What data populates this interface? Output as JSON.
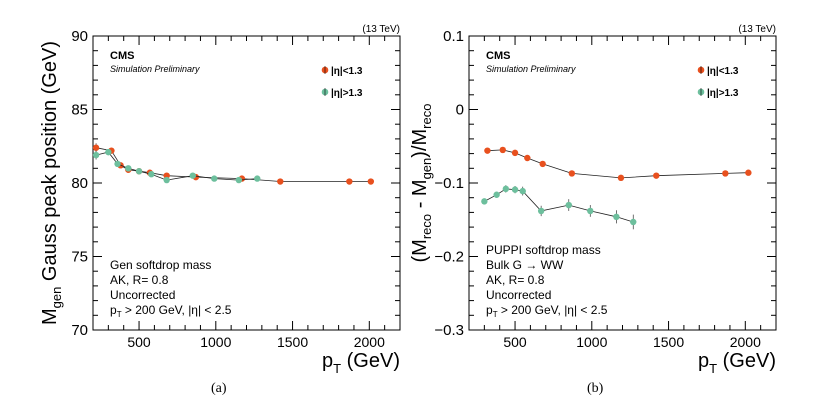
{
  "chart_data": [
    {
      "type": "line",
      "panel_label": "(a)",
      "energy_label": "(13 TeV)",
      "cms_label": "CMS",
      "sim_label": "Simulation Preliminary",
      "xlabel": "p_T (GeV)",
      "ylabel": "M_gen Gauss peak position (GeV)",
      "xlim": [
        200,
        2200
      ],
      "ylim": [
        70,
        90
      ],
      "xticks": [
        500,
        1000,
        1500,
        2000
      ],
      "yticks": [
        70,
        75,
        80,
        85,
        90
      ],
      "legend_position": "top-right",
      "annotations": [
        "Gen softdrop mass",
        "AK, R= 0.8",
        "Uncorrected",
        "p_T > 200 GeV, |η| < 2.5"
      ],
      "series": [
        {
          "name": "|η|<1.3",
          "color": "#e8501e",
          "x": [
            220,
            320,
            380,
            430,
            500,
            570,
            680,
            870,
            1170,
            1420,
            1870,
            2010
          ],
          "y": [
            82.4,
            82.2,
            81.2,
            80.9,
            80.8,
            80.7,
            80.5,
            80.4,
            80.3,
            80.1,
            80.1,
            80.1
          ],
          "err": [
            0.3,
            0.2,
            0.15,
            0.12,
            0.1,
            0.1,
            0.08,
            0.08,
            0.08,
            0.08,
            0.08,
            0.08
          ]
        },
        {
          "name": "|η|>1.3",
          "color": "#6dbf9d",
          "x": [
            220,
            300,
            360,
            430,
            500,
            580,
            680,
            850,
            990,
            1150,
            1270
          ],
          "y": [
            81.9,
            82.1,
            81.3,
            81.0,
            80.8,
            80.6,
            80.2,
            80.5,
            80.3,
            80.2,
            80.3
          ],
          "err": [
            0.3,
            0.2,
            0.15,
            0.12,
            0.1,
            0.1,
            0.1,
            0.1,
            0.1,
            0.1,
            0.1
          ]
        }
      ]
    },
    {
      "type": "line",
      "panel_label": "(b)",
      "energy_label": "(13 TeV)",
      "cms_label": "CMS",
      "sim_label": "Simulation Preliminary",
      "xlabel": "p_T (GeV)",
      "ylabel": "(M_reco - M_gen)/M_reco",
      "xlim": [
        200,
        2200
      ],
      "ylim": [
        -0.3,
        0.1
      ],
      "xticks": [
        500,
        1000,
        1500,
        2000
      ],
      "yticks": [
        -0.3,
        -0.2,
        -0.1,
        0,
        0.1
      ],
      "ytick_labels": [
        "−0.3",
        "−0.2",
        "−0.1",
        "0",
        "0.1"
      ],
      "legend_position": "top-right",
      "annotations": [
        "PUPPI softdrop mass",
        "Bulk G → WW",
        "AK, R= 0.8",
        "Uncorrected",
        "p_T > 200 GeV, |η| < 2.5"
      ],
      "series": [
        {
          "name": "|η|<1.3",
          "color": "#e8501e",
          "x": [
            320,
            420,
            500,
            580,
            680,
            870,
            1190,
            1420,
            1870,
            2020
          ],
          "y": [
            -0.056,
            -0.055,
            -0.059,
            -0.066,
            -0.074,
            -0.087,
            -0.093,
            -0.09,
            -0.087,
            -0.086
          ],
          "err": [
            0.002,
            0.002,
            0.002,
            0.002,
            0.002,
            0.002,
            0.002,
            0.002,
            0.002,
            0.002
          ]
        },
        {
          "name": "|η|>1.3",
          "color": "#6dbf9d",
          "x": [
            300,
            380,
            440,
            500,
            550,
            670,
            850,
            990,
            1160,
            1270
          ],
          "y": [
            -0.125,
            -0.116,
            -0.108,
            -0.109,
            -0.111,
            -0.138,
            -0.13,
            -0.138,
            -0.146,
            -0.153
          ],
          "err": [
            0.003,
            0.004,
            0.005,
            0.005,
            0.006,
            0.007,
            0.008,
            0.008,
            0.009,
            0.01
          ]
        }
      ]
    }
  ]
}
